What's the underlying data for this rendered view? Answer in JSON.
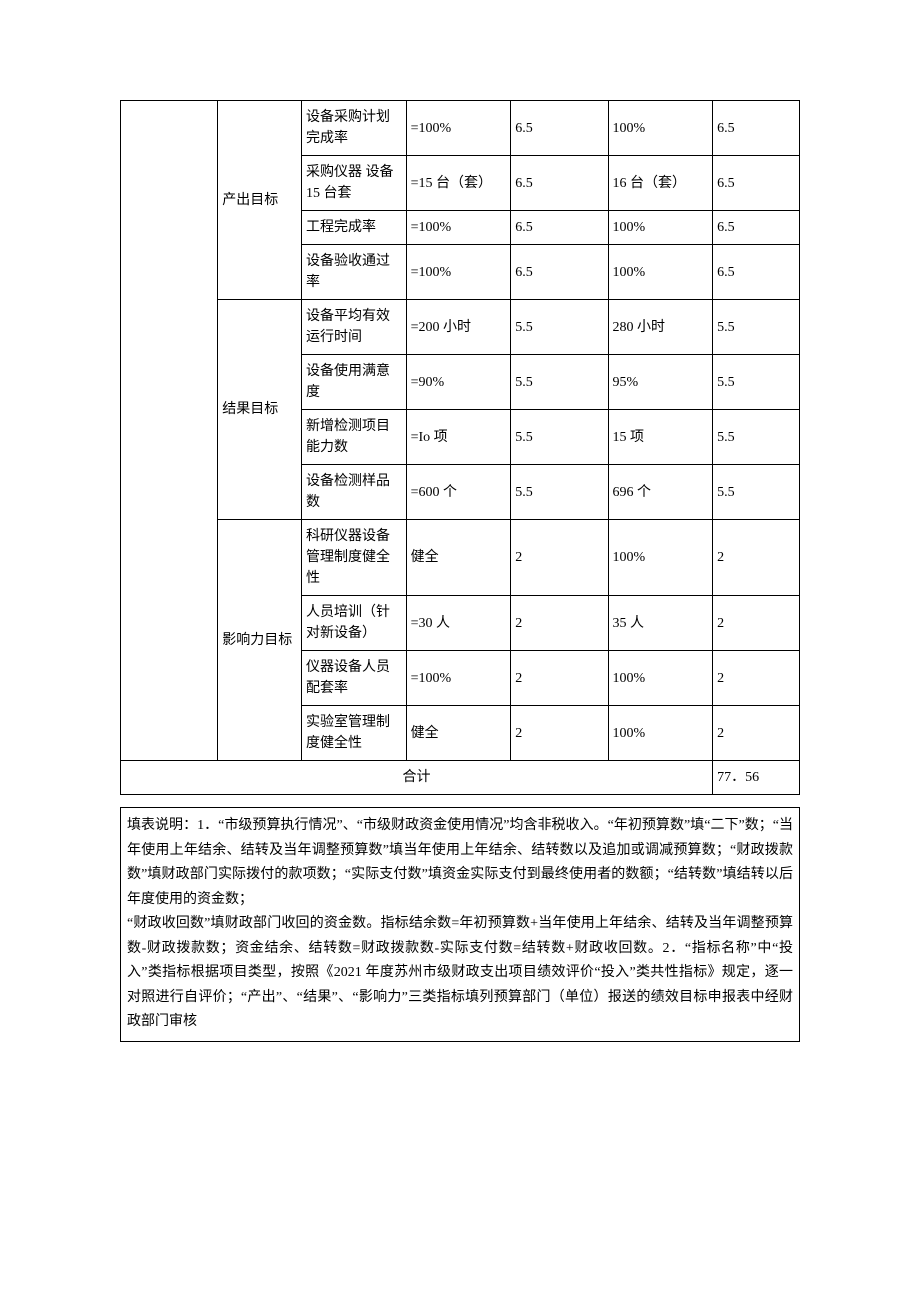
{
  "table": {
    "groups": [
      {
        "name": "产出目标",
        "rows": [
          {
            "indicator": "设备采购计划完成率",
            "target": "=100%",
            "weight1": "6.5",
            "actual": "100%",
            "weight2": "6.5"
          },
          {
            "indicator": "采购仪器\n设备 15 台套",
            "target": "=15 台（套）",
            "weight1": "6.5",
            "actual": "16 台（套）",
            "weight2": "6.5"
          },
          {
            "indicator": "工程完成率",
            "target": "=100%",
            "weight1": "6.5",
            "actual": "100%",
            "weight2": "6.5"
          },
          {
            "indicator": "设备验收通过率",
            "target": "=100%",
            "weight1": "6.5",
            "actual": "100%",
            "weight2": "6.5"
          }
        ]
      },
      {
        "name": "结果目标",
        "rows": [
          {
            "indicator": "设备平均有效运行时间",
            "target": "=200 小时",
            "weight1": "5.5",
            "actual": "280 小时",
            "weight2": "5.5"
          },
          {
            "indicator": "设备使用满意度",
            "target": "=90%",
            "weight1": "5.5",
            "actual": "95%",
            "weight2": "5.5"
          },
          {
            "indicator": "新增检测项目能力数",
            "target": "=Io 项",
            "weight1": "5.5",
            "actual": "15 项",
            "weight2": "5.5"
          },
          {
            "indicator": "设备检测样品数",
            "target": "=600 个",
            "weight1": "5.5",
            "actual": "696 个",
            "weight2": "5.5"
          }
        ]
      },
      {
        "name": "影响力目标",
        "rows": [
          {
            "indicator": "科研仪器设备管理制度健全性",
            "target": "健全",
            "weight1": "2",
            "actual": "100%",
            "weight2": "2"
          },
          {
            "indicator": "人员培训（针对新设备）",
            "target": "=30 人",
            "weight1": "2",
            "actual": "35 人",
            "weight2": "2"
          },
          {
            "indicator": "仪器设备人员配套率",
            "target": "=100%",
            "weight1": "2",
            "actual": "100%",
            "weight2": "2"
          },
          {
            "indicator": "实验室管理制度健全性",
            "target": "健全",
            "weight1": "2",
            "actual": "100%",
            "weight2": "2"
          }
        ]
      }
    ],
    "total_label": "合计",
    "total_value": "77．56"
  },
  "notes": {
    "p1": "填表说明：1．“市级预算执行情况”、“市级财政资金使用情况”均含非税收入。“年初预算数”填“二下”数；“当年使用上年结余、结转及当年调整预算数”填当年使用上年结余、结转数以及追加或调减预算数；“财政拨款数”填财政部门实际拨付的款项数；“实际支付数”填资金实际支付到最终使用者的数额；“结转数”填结转以后年度使用的资金数；",
    "p2": "“财政收回数”填财政部门收回的资金数。指标结余数=年初预算数+当年使用上年结余、结转及当年调整预算数-财政拨款数；资金结余、结转数=财政拨款数-实际支付数=结转数+财政收回数。2．“指标名称”中“投入”类指标根据项目类型，按照《2021 年度苏州市级财政支出项目绩效评价“投入”类共性指标》规定，逐一对照进行自评价；“产出”、“结果”、“影响力”三类指标填列预算部门（单位）报送的绩效目标申报表中经财政部门审核"
  }
}
